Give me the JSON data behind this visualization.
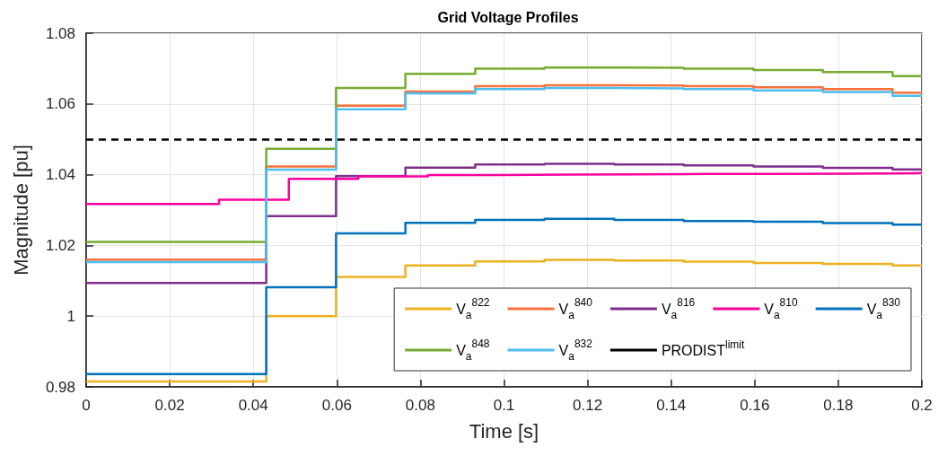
{
  "chart_data": {
    "type": "step",
    "title": "Grid Voltage Profiles",
    "xlabel": "Time [s]",
    "ylabel": "Magnitude [pu]",
    "xlim": [
      0,
      0.2
    ],
    "xticks": [
      0,
      0.02,
      0.04,
      0.06,
      0.08,
      0.1,
      0.12,
      0.14,
      0.16,
      0.18,
      0.2
    ],
    "ylim": [
      0.98,
      1.08
    ],
    "yticks": [
      0.98,
      1,
      1.02,
      1.04,
      1.06,
      1.08
    ],
    "grid": true,
    "legend": "bottom right",
    "line_style": "solid",
    "marker": "none",
    "x": [
      0,
      0.0431,
      0.0598,
      0.0764,
      0.0931,
      0.1097,
      0.1264,
      0.143,
      0.1597,
      0.1763,
      0.193,
      0.2
    ],
    "series": [
      {
        "name": "V$_{a}$$^{822}$",
        "color": "#edb120",
        "values": [
          0.9815,
          1.0,
          1.0111,
          1.0143,
          1.0155,
          1.0159,
          1.0157,
          1.0154,
          1.015,
          1.0148,
          1.0143,
          1.0143
        ]
      },
      {
        "name": "V$_{a}$$^{840}$",
        "color": "#f9703a",
        "values": [
          1.016,
          1.0423,
          1.0595,
          1.0635,
          1.065,
          1.0653,
          1.0652,
          1.065,
          1.0647,
          1.0642,
          1.0632,
          1.0632
        ]
      },
      {
        "name": "V$_{a}$$^{816}$",
        "color": "#7e2f8e",
        "values": [
          1.0094,
          1.0283,
          1.0396,
          1.042,
          1.0429,
          1.0431,
          1.0429,
          1.0426,
          1.0423,
          1.0419,
          1.0415,
          1.0415
        ]
      },
      {
        "name": "V$_{a}$$^{810}$",
        "color": "#ff00a0",
        "x": [
          0,
          0.0318,
          0.0485,
          0.0651,
          0.0818,
          0.0985,
          0.1151,
          0.1318,
          0.1484,
          0.1651,
          0.1817,
          0.1984,
          0.2
        ],
        "values": [
          1.0317,
          1.0329,
          1.0388,
          1.0395,
          1.0399,
          1.04,
          1.0401,
          1.0402,
          1.0402,
          1.0403,
          1.0404,
          1.0405,
          1.0405
        ]
      },
      {
        "name": "V$_{a}$$^{830}$",
        "color": "#0072bd",
        "values": [
          0.9836,
          1.0082,
          1.0234,
          1.0264,
          1.0272,
          1.0275,
          1.0272,
          1.0269,
          1.0267,
          1.0263,
          1.0259,
          1.0259
        ]
      },
      {
        "name": "V$_{a}$$^{848}$",
        "color": "#77ac30",
        "values": [
          1.021,
          1.0473,
          1.0645,
          1.0685,
          1.07,
          1.0703,
          1.0702,
          1.07,
          1.0696,
          1.069,
          1.0679,
          1.0679
        ]
      },
      {
        "name": "V$_{a}$$^{832}$",
        "color": "#4dbeee",
        "values": [
          1.0153,
          1.0414,
          1.0585,
          1.063,
          1.0642,
          1.0645,
          1.0644,
          1.0642,
          1.0638,
          1.0634,
          1.0623,
          1.0623
        ]
      }
    ],
    "ref_lines": [
      {
        "axis": "y",
        "value": 1.05,
        "label": "PRODIST$^{limit}$",
        "color": "#000000",
        "line_style": "dashed"
      }
    ]
  }
}
